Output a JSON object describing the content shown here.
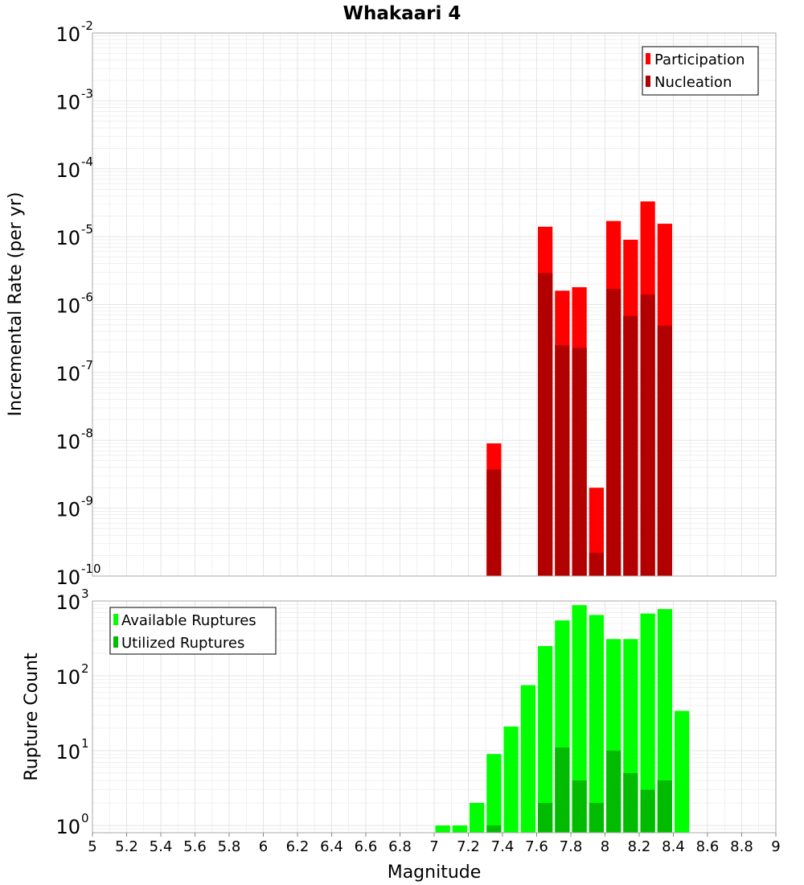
{
  "colors": {
    "participation": "#ff0000",
    "nucleation": "#b20000",
    "available": "#00ff00",
    "utilized": "#00bb00",
    "grid": "#e6e6e6",
    "frame": "#aaaaaa"
  },
  "chart_data": [
    {
      "type": "bar",
      "title": "Whakaari 4",
      "xlabel": "",
      "ylabel": "Incremental Rate (per yr)",
      "yscale": "log",
      "ylim": [
        1e-10,
        0.01
      ],
      "xlim": [
        5,
        9
      ],
      "grid": true,
      "legend_position": "top-right",
      "y_tick_base": "10",
      "y_tick_exponents": [
        "-2",
        "-3",
        "-4",
        "-5",
        "-6",
        "-7",
        "-8",
        "-9",
        "-10"
      ],
      "legend": [
        "Participation",
        "Nucleation"
      ],
      "bar_width": 0.1,
      "x": [
        7.35,
        7.65,
        7.75,
        7.85,
        7.95,
        8.05,
        8.15,
        8.25,
        8.35
      ],
      "series": [
        {
          "name": "Participation",
          "values": [
            9e-09,
            1.4e-05,
            1.6e-06,
            1.8e-06,
            2e-09,
            1.7e-05,
            9e-06,
            3.3e-05,
            1.55e-05
          ]
        },
        {
          "name": "Nucleation",
          "values": [
            3.7e-09,
            2.9e-06,
            2.5e-07,
            2.3e-07,
            2.2e-10,
            1.7e-06,
            6.8e-07,
            1.4e-06,
            4.9e-07
          ]
        }
      ]
    },
    {
      "type": "bar",
      "xlabel": "Magnitude",
      "ylabel": "Rupture Count",
      "yscale": "log",
      "ylim": [
        0.8,
        1000
      ],
      "xlim": [
        5,
        9
      ],
      "grid": true,
      "legend_position": "top-left",
      "y_tick_base": "10",
      "y_tick_exponents": [
        "3",
        "2",
        "1",
        "0"
      ],
      "x_ticks": [
        "5",
        "5.2",
        "5.4",
        "5.6",
        "5.8",
        "6",
        "6.2",
        "6.4",
        "6.6",
        "6.8",
        "7",
        "7.2",
        "7.4",
        "7.6",
        "7.8",
        "8",
        "8.2",
        "8.4",
        "8.6",
        "8.8",
        "9"
      ],
      "legend": [
        "Available Ruptures",
        "Utilized Ruptures"
      ],
      "bar_width": 0.1,
      "x": [
        7.05,
        7.15,
        7.25,
        7.35,
        7.45,
        7.55,
        7.65,
        7.75,
        7.85,
        7.95,
        8.05,
        8.15,
        8.25,
        8.35,
        8.45
      ],
      "series": [
        {
          "name": "Available Ruptures",
          "values": [
            1,
            1,
            2,
            9,
            21,
            75,
            250,
            550,
            880,
            650,
            310,
            310,
            680,
            780,
            34
          ]
        },
        {
          "name": "Utilized Ruptures",
          "values": [
            null,
            null,
            null,
            1,
            null,
            null,
            2,
            11,
            4,
            2,
            10,
            5,
            3,
            4,
            null
          ]
        }
      ]
    }
  ]
}
